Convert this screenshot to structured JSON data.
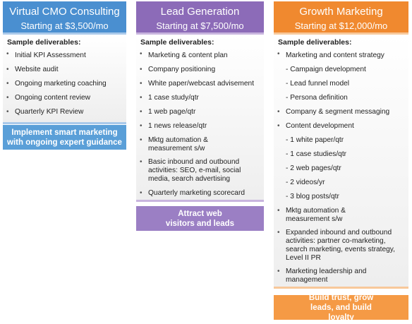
{
  "tiers": [
    {
      "title": "Virtual CMO Consulting",
      "price": "Starting at $3,500/mo",
      "deliverables_label": "Sample deliverables:",
      "items": [
        {
          "text": "Initial KPI Assessment",
          "sub": false
        },
        {
          "text": "Website audit",
          "sub": false
        },
        {
          "text": "Ongoing marketing coaching",
          "sub": false
        },
        {
          "text": "Ongoing content review",
          "sub": false
        },
        {
          "text": "Quarterly KPI Review",
          "sub": false
        }
      ],
      "cta": "Implement smart marketing with ongoing expert guidance",
      "colors": {
        "header": "#4a8fd0",
        "cta": "#5a9fd8",
        "sep": "#a9c9ea"
      }
    },
    {
      "title": "Lead Generation",
      "price": "Starting at $7,500/mo",
      "deliverables_label": "Sample deliverables:",
      "items": [
        {
          "text": "Marketing & content plan",
          "sub": false
        },
        {
          "text": "Company positioning",
          "sub": false
        },
        {
          "text": "White paper/webcast advisement",
          "sub": false
        },
        {
          "text": "1 case study/qtr",
          "sub": false
        },
        {
          "text": "1 web page/qtr",
          "sub": false
        },
        {
          "text": "1 news release/qtr",
          "sub": false
        },
        {
          "text": "Mktg automation & measurement s/w",
          "sub": false
        },
        {
          "text": "Basic inbound and outbound activities: SEO, e-mail, social media, search advertising",
          "sub": false
        },
        {
          "text": "Quarterly marketing scorecard",
          "sub": false
        }
      ],
      "cta": "Attract web visitors and leads",
      "colors": {
        "header": "#8c6bb8",
        "cta": "#9b7fc4",
        "sep": "#c8b5de"
      }
    },
    {
      "title": "Growth Marketing",
      "price": "Starting at $12,000/mo",
      "deliverables_label": "Sample deliverables:",
      "items": [
        {
          "text": "Marketing and content strategy",
          "sub": false
        },
        {
          "text": "- Campaign development",
          "sub": true
        },
        {
          "text": "- Lead funnel model",
          "sub": true
        },
        {
          "text": "- Persona definition",
          "sub": true
        },
        {
          "text": "Company & segment messaging",
          "sub": false
        },
        {
          "text": "Content development",
          "sub": false
        },
        {
          "text": "- 1 white paper/qtr",
          "sub": true
        },
        {
          "text": "- 1 case studies/qtr",
          "sub": true
        },
        {
          "text": "- 2 web pages/qtr",
          "sub": true
        },
        {
          "text": "- 2 videos/yr",
          "sub": true
        },
        {
          "text": "- 3 blog posts/qtr",
          "sub": true
        },
        {
          "text": "Mktg automation & measurement s/w",
          "sub": false
        },
        {
          "text": "Expanded inbound and outbound activities: partner co-marketing, search marketing, events strategy, Level II PR",
          "sub": false
        },
        {
          "text": "Marketing leadership and management",
          "sub": false
        }
      ],
      "cta": "Build trust, grow leads, and build loyalty",
      "colors": {
        "header": "#f0892f",
        "cta": "#f59a45",
        "sep": "#f8c89a"
      }
    }
  ]
}
